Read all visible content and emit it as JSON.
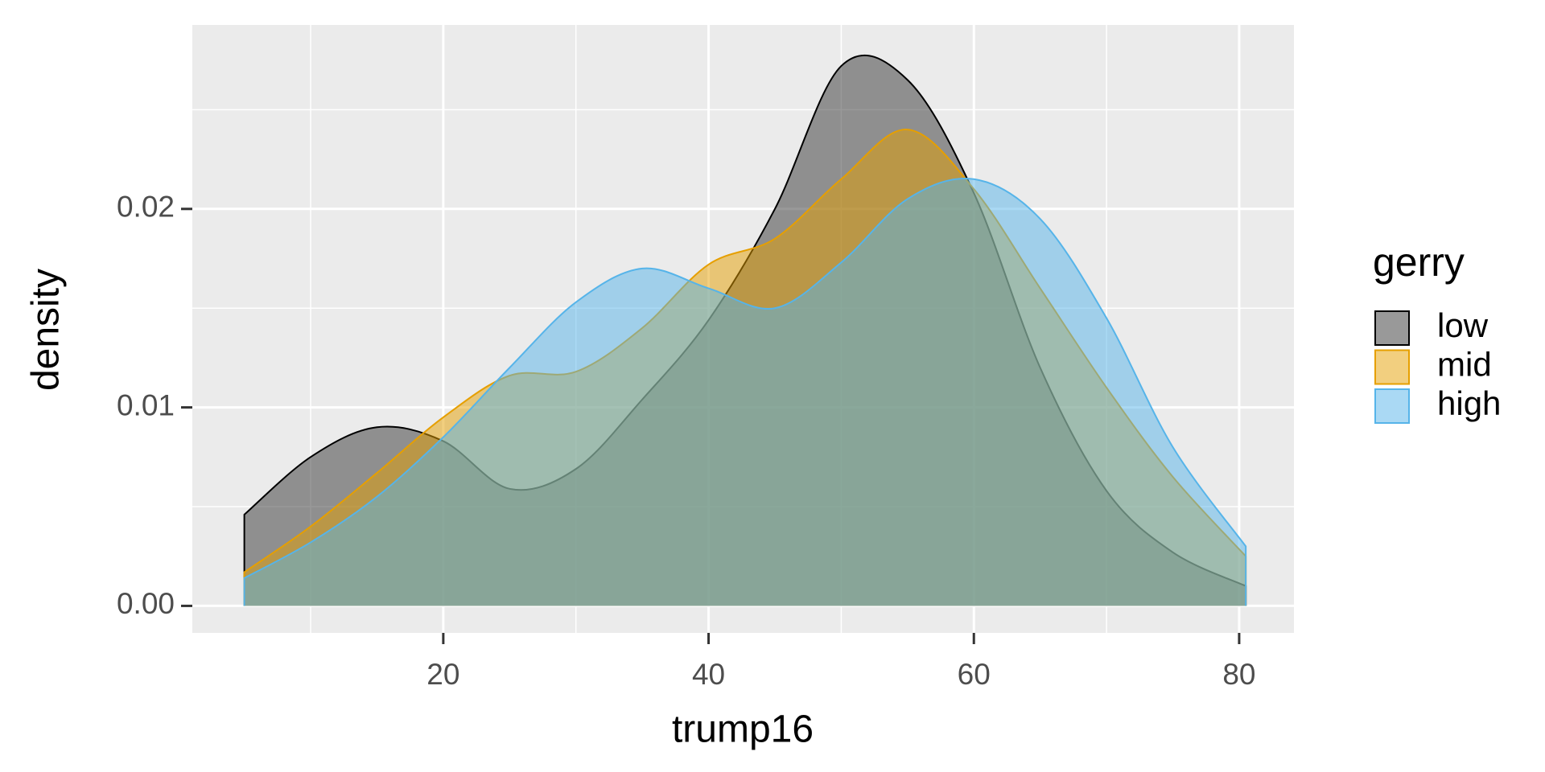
{
  "chart_data": {
    "type": "density",
    "x_label": "trump16",
    "y_label": "density",
    "legend_title": "gerry",
    "x": [
      5,
      10,
      15,
      20,
      25,
      30,
      35,
      40,
      45,
      50,
      55,
      60,
      65,
      70,
      75,
      80.5
    ],
    "series": [
      {
        "name": "low",
        "color": "#333333",
        "outline": "#000000",
        "values": [
          0.0046,
          0.0075,
          0.009,
          0.0083,
          0.0059,
          0.0069,
          0.0104,
          0.0144,
          0.02,
          0.0272,
          0.0265,
          0.0208,
          0.012,
          0.0058,
          0.0027,
          0.001
        ]
      },
      {
        "name": "mid",
        "color": "#E69F00",
        "outline": "#E69F00",
        "values": [
          0.0017,
          0.004,
          0.0067,
          0.0095,
          0.0116,
          0.0118,
          0.014,
          0.0172,
          0.0185,
          0.0215,
          0.024,
          0.021,
          0.016,
          0.011,
          0.0065,
          0.0025
        ]
      },
      {
        "name": "high",
        "color": "#56B4E9",
        "outline": "#56B4E9",
        "values": [
          0.0014,
          0.0032,
          0.0055,
          0.0085,
          0.012,
          0.0153,
          0.017,
          0.016,
          0.015,
          0.0173,
          0.0205,
          0.0215,
          0.0195,
          0.0145,
          0.008,
          0.003
        ]
      }
    ],
    "xlim": [
      1.08,
      84.13
    ],
    "ylim": [
      -0.00136,
      0.02927
    ],
    "xticks": [
      20,
      40,
      60,
      80
    ],
    "x_minor_ticks": [
      10,
      30,
      50,
      70
    ],
    "yticks": [
      {
        "value": 0,
        "label": "0.00"
      },
      0.01,
      0.02
    ],
    "y_minor_ticks": [
      0.005,
      0.015,
      0.025
    ],
    "grid": true,
    "fill_opacity": 0.5,
    "legend": "right"
  }
}
